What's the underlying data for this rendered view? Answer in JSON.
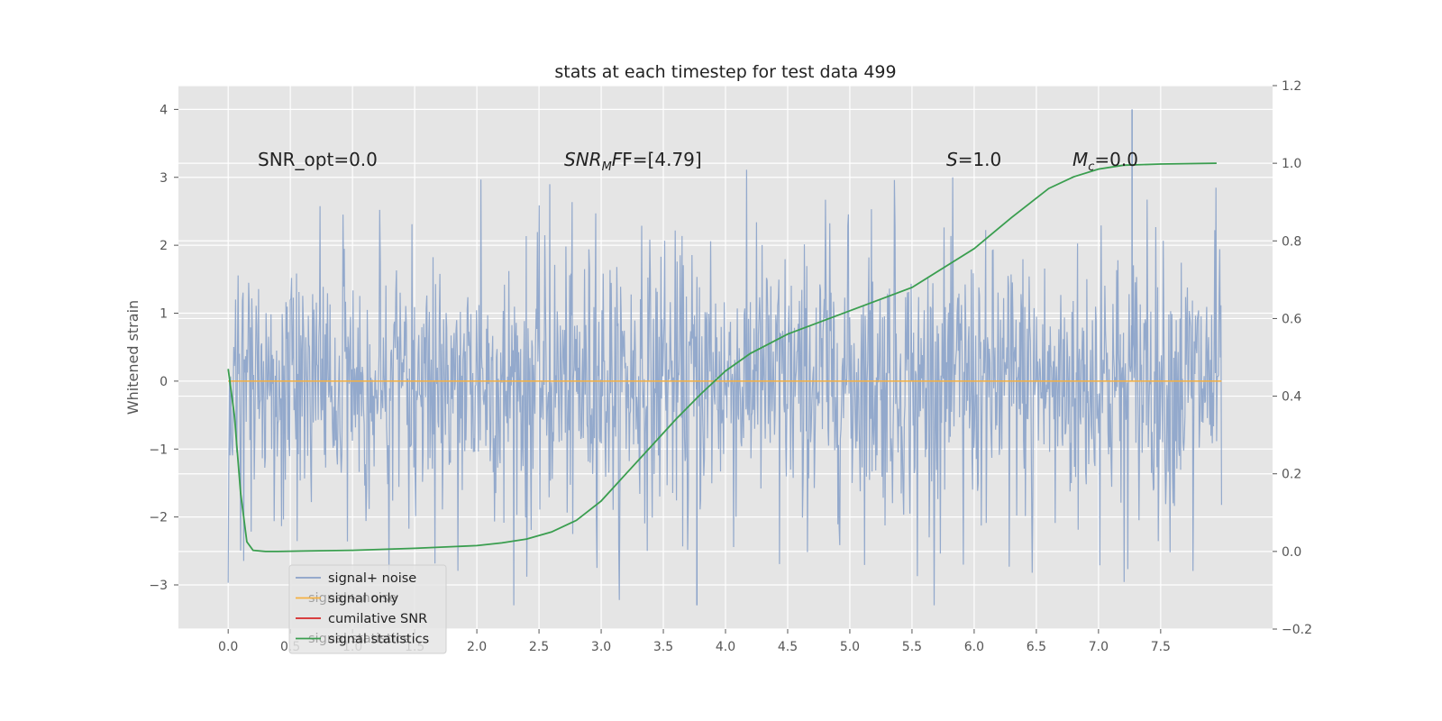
{
  "chart_data": {
    "type": "line",
    "title": "stats at each timestep for test data 499",
    "ylabel": "Whitened strain",
    "xlim": [
      -0.4,
      8.4
    ],
    "ylim": [
      -3.65,
      4.35
    ],
    "y2lim": [
      -0.2,
      1.2
    ],
    "x_ticks": [
      0.0,
      0.5,
      1.0,
      1.5,
      2.0,
      2.5,
      3.0,
      3.5,
      4.0,
      4.5,
      5.0,
      5.5,
      6.0,
      6.5,
      7.0,
      7.5
    ],
    "x_tick_labels": [
      "0.0",
      "0.5",
      "1.0",
      "1.5",
      "2.0",
      "2.5",
      "3.0",
      "3.5",
      "4.0",
      "4.5",
      "5.0",
      "5.5",
      "6.0",
      "6.5",
      "7.0",
      "7.5"
    ],
    "y_ticks": [
      -3,
      -2,
      -1,
      0,
      1,
      2,
      3,
      4
    ],
    "y_tick_labels": [
      "−3",
      "−2",
      "−1",
      "0",
      "1",
      "2",
      "3",
      "4"
    ],
    "y2_ticks": [
      -0.2,
      0.0,
      0.2,
      0.4,
      0.6,
      0.8,
      1.0,
      1.2
    ],
    "y2_tick_labels": [
      "−0.2",
      "0.0",
      "0.2",
      "0.4",
      "0.6",
      "0.8",
      "1.0",
      "1.2"
    ],
    "grid": true,
    "legend_position": "lower-left",
    "series": [
      {
        "name": "signal+ noise",
        "color": "#8aa2c9",
        "axis": "left",
        "kind": "noise",
        "x_range": [
          0.0,
          7.99
        ],
        "typical_amplitude": 1.0,
        "max": 4.0,
        "min": -3.3
      },
      {
        "name": "signal only",
        "color": "#f5b041",
        "axis": "left",
        "x": [
          0.0,
          7.99
        ],
        "y": [
          0.0,
          0.0
        ]
      },
      {
        "name": "cumilative SNR",
        "color": "#d62728",
        "axis": "right",
        "x": [],
        "y": []
      },
      {
        "name": "signal statistics",
        "color": "#3a9e4f",
        "axis": "right",
        "x": [
          0.0,
          0.05,
          0.1,
          0.15,
          0.2,
          0.3,
          0.4,
          0.6,
          1.0,
          1.5,
          2.0,
          2.2,
          2.4,
          2.6,
          2.8,
          3.0,
          3.2,
          3.4,
          3.6,
          3.8,
          4.0,
          4.2,
          4.5,
          5.0,
          5.5,
          6.0,
          6.3,
          6.6,
          6.8,
          7.0,
          7.2,
          7.5,
          7.95
        ],
        "y": [
          0.47,
          0.35,
          0.15,
          0.025,
          0.003,
          0.0,
          0.0,
          0.001,
          0.003,
          0.008,
          0.015,
          0.022,
          0.032,
          0.05,
          0.08,
          0.13,
          0.2,
          0.27,
          0.34,
          0.405,
          0.465,
          0.51,
          0.56,
          0.62,
          0.68,
          0.78,
          0.86,
          0.935,
          0.965,
          0.985,
          0.995,
          0.998,
          1.0
        ]
      }
    ],
    "annotations": {
      "snr_opt": "SNR_opt=0.0",
      "snr_mf_base": "SNR",
      "snr_mf_sub": "M",
      "snr_mf_rest": "F=[4.79]",
      "s_letter": "S",
      "s_rest": "=1.0",
      "mc_letter": "M",
      "mc_sub": "c",
      "mc_rest": "=0.0",
      "legend_ghost_1": "signal+ noise",
      "legend_ghost_2": "signal statistics"
    },
    "colors": {
      "plot_background": "#e5e5e5",
      "grid": "#ffffff",
      "legend_background": "#e5e5e5"
    }
  }
}
